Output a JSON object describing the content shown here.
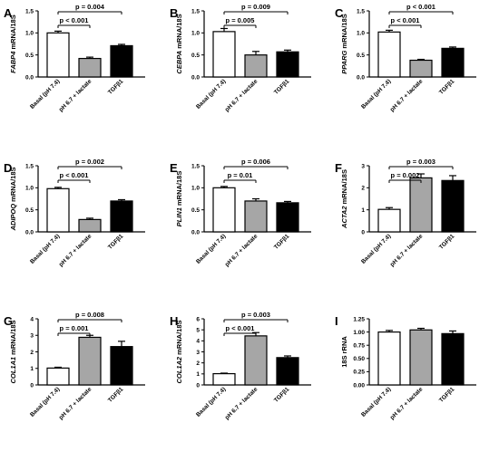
{
  "chart_data": [
    {
      "type": "bar",
      "panel": "A",
      "ylabel": "FABP4 mRNA/18S",
      "ylabel_italic_part": "FABP4",
      "categories": [
        "Basal (pH 7.4)",
        "pH 6.7 + lactate",
        "TGFβ1"
      ],
      "values": [
        1.0,
        0.42,
        0.71
      ],
      "errors": [
        0.04,
        0.03,
        0.03
      ],
      "ylim": [
        0,
        1.5
      ],
      "yticks": [
        "0.0",
        "0.5",
        "1.0",
        "1.5"
      ],
      "yticks_values": [
        0,
        0.5,
        1.0,
        1.5
      ],
      "bar_colors": [
        "#ffffff",
        "#a6a6a6",
        "#000000"
      ],
      "significance": [
        {
          "label": "p < 0.001",
          "from": 0,
          "to": 1
        },
        {
          "label": "p = 0.004",
          "from": 0,
          "to": 2
        }
      ]
    },
    {
      "type": "bar",
      "panel": "B",
      "ylabel": "CEBPA mRNA/18S",
      "ylabel_italic_part": "CEBPA",
      "categories": [
        "Basal (pH 7.4)",
        "pH 6.7 + lactate",
        "TGFβ1"
      ],
      "values": [
        1.03,
        0.5,
        0.57
      ],
      "errors": [
        0.07,
        0.08,
        0.04
      ],
      "ylim": [
        0,
        1.5
      ],
      "yticks": [
        "0.0",
        "0.5",
        "1.0",
        "1.5"
      ],
      "yticks_values": [
        0,
        0.5,
        1.0,
        1.5
      ],
      "bar_colors": [
        "#ffffff",
        "#a6a6a6",
        "#000000"
      ],
      "significance": [
        {
          "label": "p = 0.005",
          "from": 0,
          "to": 1
        },
        {
          "label": "p = 0.009",
          "from": 0,
          "to": 2
        }
      ]
    },
    {
      "type": "bar",
      "panel": "C",
      "ylabel": "PPARG mRNA/18S",
      "ylabel_italic_part": "PPARG",
      "categories": [
        "Basal (pH 7.4)",
        "pH 6.7 + lactate",
        "TGFβ1"
      ],
      "values": [
        1.02,
        0.38,
        0.65
      ],
      "errors": [
        0.04,
        0.02,
        0.03
      ],
      "ylim": [
        0,
        1.5
      ],
      "yticks": [
        "0.0",
        "0.5",
        "1.0",
        "1.5"
      ],
      "yticks_values": [
        0,
        0.5,
        1.0,
        1.5
      ],
      "bar_colors": [
        "#ffffff",
        "#a6a6a6",
        "#000000"
      ],
      "significance": [
        {
          "label": "p < 0.001",
          "from": 0,
          "to": 1
        },
        {
          "label": "p < 0.001",
          "from": 0,
          "to": 2
        }
      ]
    },
    {
      "type": "bar",
      "panel": "D",
      "ylabel": "ADIPOQ mRNA/18S",
      "ylabel_italic_part": "ADIPOQ",
      "categories": [
        "Basal (pH 7.4)",
        "pH 6.7 + lactate",
        "TGFβ1"
      ],
      "values": [
        0.98,
        0.28,
        0.7
      ],
      "errors": [
        0.03,
        0.03,
        0.03
      ],
      "ylim": [
        0,
        1.5
      ],
      "yticks": [
        "0.0",
        "0.5",
        "1.0",
        "1.5"
      ],
      "yticks_values": [
        0,
        0.5,
        1.0,
        1.5
      ],
      "bar_colors": [
        "#ffffff",
        "#a6a6a6",
        "#000000"
      ],
      "significance": [
        {
          "label": "p < 0.001",
          "from": 0,
          "to": 1
        },
        {
          "label": "p = 0.002",
          "from": 0,
          "to": 2
        }
      ]
    },
    {
      "type": "bar",
      "panel": "E",
      "ylabel": "PLIN1 mRNA/18S",
      "ylabel_italic_part": "PLIN1",
      "categories": [
        "Basal (pH 7.4)",
        "pH 6.7 + lactate",
        "TGFβ1"
      ],
      "values": [
        1.0,
        0.7,
        0.66
      ],
      "errors": [
        0.03,
        0.05,
        0.03
      ],
      "ylim": [
        0,
        1.5
      ],
      "yticks": [
        "0.0",
        "0.5",
        "1.0",
        "1.5"
      ],
      "yticks_values": [
        0,
        0.5,
        1.0,
        1.5
      ],
      "bar_colors": [
        "#ffffff",
        "#a6a6a6",
        "#000000"
      ],
      "significance": [
        {
          "label": "p = 0.01",
          "from": 0,
          "to": 1
        },
        {
          "label": "p = 0.006",
          "from": 0,
          "to": 2
        }
      ]
    },
    {
      "type": "bar",
      "panel": "F",
      "ylabel": "ACTA2 mRNA/18S",
      "ylabel_italic_part": "ACTA2",
      "categories": [
        "Basal (pH 7.4)",
        "pH 6.7 + lactate",
        "TGFβ1"
      ],
      "values": [
        1.02,
        2.45,
        2.33
      ],
      "errors": [
        0.08,
        0.18,
        0.22
      ],
      "ylim": [
        0,
        3
      ],
      "yticks": [
        "0",
        "1",
        "2",
        "3"
      ],
      "yticks_values": [
        0,
        1,
        2,
        3
      ],
      "bar_colors": [
        "#ffffff",
        "#a6a6a6",
        "#000000"
      ],
      "significance": [
        {
          "label": "p = 0.002",
          "from": 0,
          "to": 1
        },
        {
          "label": "p = 0.003",
          "from": 0,
          "to": 2
        }
      ]
    },
    {
      "type": "bar",
      "panel": "G",
      "ylabel": "COL1A1 mRNA/18S",
      "ylabel_italic_part": "COL1A1",
      "categories": [
        "Basal (pH 7.4)",
        "pH 6.7 + lactate",
        "TGFβ1"
      ],
      "values": [
        1.02,
        2.88,
        2.32
      ],
      "errors": [
        0.05,
        0.12,
        0.32
      ],
      "ylim": [
        0,
        4
      ],
      "yticks": [
        "0",
        "1",
        "2",
        "3",
        "4"
      ],
      "yticks_values": [
        0,
        1,
        2,
        3,
        4
      ],
      "bar_colors": [
        "#ffffff",
        "#a6a6a6",
        "#000000"
      ],
      "significance": [
        {
          "label": "p = 0.001",
          "from": 0,
          "to": 1
        },
        {
          "label": "p = 0.008",
          "from": 0,
          "to": 2
        }
      ]
    },
    {
      "type": "bar",
      "panel": "H",
      "ylabel": "COL1A2 mRNA/18S",
      "ylabel_italic_part": "COL1A2",
      "categories": [
        "Basal (pH 7.4)",
        "pH 6.7 + lactate",
        "TGFβ1"
      ],
      "values": [
        1.02,
        4.45,
        2.48
      ],
      "errors": [
        0.05,
        0.3,
        0.15
      ],
      "ylim": [
        0,
        6
      ],
      "yticks": [
        "0",
        "1",
        "2",
        "3",
        "4",
        "5",
        "6"
      ],
      "yticks_values": [
        0,
        1,
        2,
        3,
        4,
        5,
        6
      ],
      "bar_colors": [
        "#ffffff",
        "#a6a6a6",
        "#000000"
      ],
      "significance": [
        {
          "label": "p < 0.001",
          "from": 0,
          "to": 1
        },
        {
          "label": "p = 0.003",
          "from": 0,
          "to": 2
        }
      ]
    },
    {
      "type": "bar",
      "panel": "I",
      "ylabel": "18S rRNA",
      "ylabel_italic_part": "",
      "categories": [
        "Basal (pH 7.4)",
        "pH 6.7 + lactate",
        "TGFβ1"
      ],
      "values": [
        1.0,
        1.04,
        0.97
      ],
      "errors": [
        0.03,
        0.03,
        0.05
      ],
      "ylim": [
        0,
        1.25
      ],
      "yticks": [
        "0.00",
        "0.25",
        "0.50",
        "0.75",
        "1.00",
        "1.25"
      ],
      "yticks_values": [
        0,
        0.25,
        0.5,
        0.75,
        1.0,
        1.25
      ],
      "bar_colors": [
        "#ffffff",
        "#a6a6a6",
        "#000000"
      ],
      "significance": []
    }
  ]
}
